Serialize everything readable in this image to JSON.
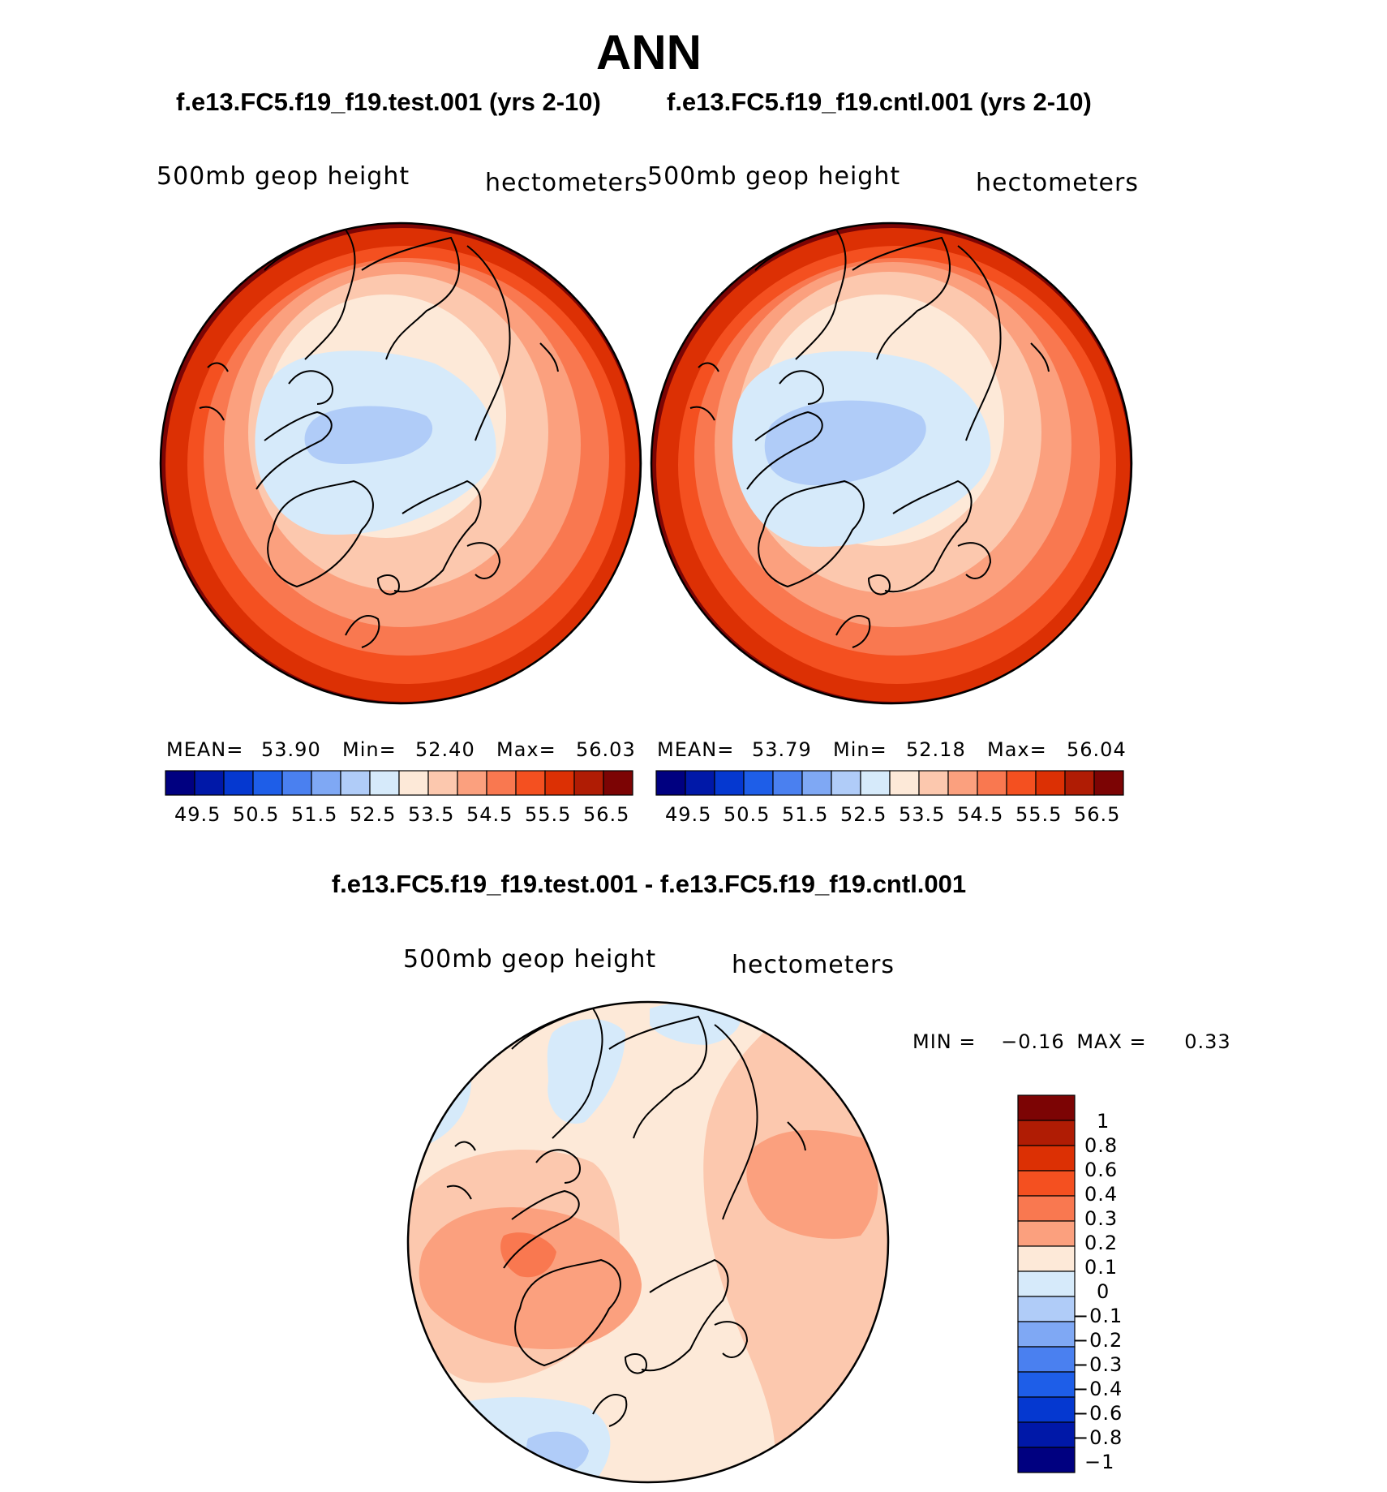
{
  "main_title": "ANN",
  "panels": [
    {
      "case_title": "f.e13.FC5.f19_f19.test.001 (yrs 2-10)",
      "variable": "500mb geop height",
      "units": "hectometers",
      "mean_label": "MEAN=",
      "mean": "53.90",
      "min_label": "Min=",
      "min": "52.40",
      "max_label": "Max=",
      "max": "56.03"
    },
    {
      "case_title": "f.e13.FC5.f19_f19.cntl.001 (yrs 2-10)",
      "variable": "500mb geop height",
      "units": "hectometers",
      "mean_label": "MEAN=",
      "mean": "53.79",
      "min_label": "Min=",
      "min": "52.18",
      "max_label": "Max=",
      "max": "56.04"
    }
  ],
  "colorbar_top": {
    "labels": [
      "49.5",
      "50.5",
      "51.5",
      "52.5",
      "53.5",
      "54.5",
      "55.5",
      "56.5"
    ],
    "colors": [
      "#000080",
      "#0018a8",
      "#0538d0",
      "#1e5ee8",
      "#4a80f0",
      "#7fa8f4",
      "#b0ccf8",
      "#d6eafa",
      "#fde9d8",
      "#fcc8ae",
      "#fba07e",
      "#f97850",
      "#f45020",
      "#dc3004",
      "#b01c04",
      "#7c0404"
    ]
  },
  "difference": {
    "title": "f.e13.FC5.f19_f19.test.001 - f.e13.FC5.f19_f19.cntl.001",
    "variable": "500mb geop height",
    "units": "hectometers",
    "min_label": "MIN =",
    "min": "−0.16",
    "max_label": "MAX =",
    "max": "0.33"
  },
  "colorbar_diff": {
    "labels": [
      "1",
      "0.8",
      "0.6",
      "0.4",
      "0.3",
      "0.2",
      "0.1",
      "0",
      "−0.1",
      "−0.2",
      "−0.3",
      "−0.4",
      "−0.6",
      "−0.8",
      "−1"
    ],
    "colors_top_to_bottom": [
      "#7c0404",
      "#b01c04",
      "#dc3004",
      "#f45020",
      "#f97850",
      "#fba07e",
      "#fde9d8",
      "#d6eafa",
      "#b0ccf8",
      "#7fa8f4",
      "#4a80f0",
      "#1e5ee8",
      "#0538d0",
      "#0018a8",
      "#000080"
    ]
  },
  "colors": {
    "ring1": "#7c0404",
    "ring2": "#dc3004",
    "ring3": "#f45020",
    "ring4": "#f97850",
    "ring5": "#fba07e",
    "ring6": "#fcc8ae",
    "ring7": "#fde9d8",
    "low1": "#d6eafa",
    "low2": "#b0ccf8",
    "low3": "#7fa8f4"
  }
}
